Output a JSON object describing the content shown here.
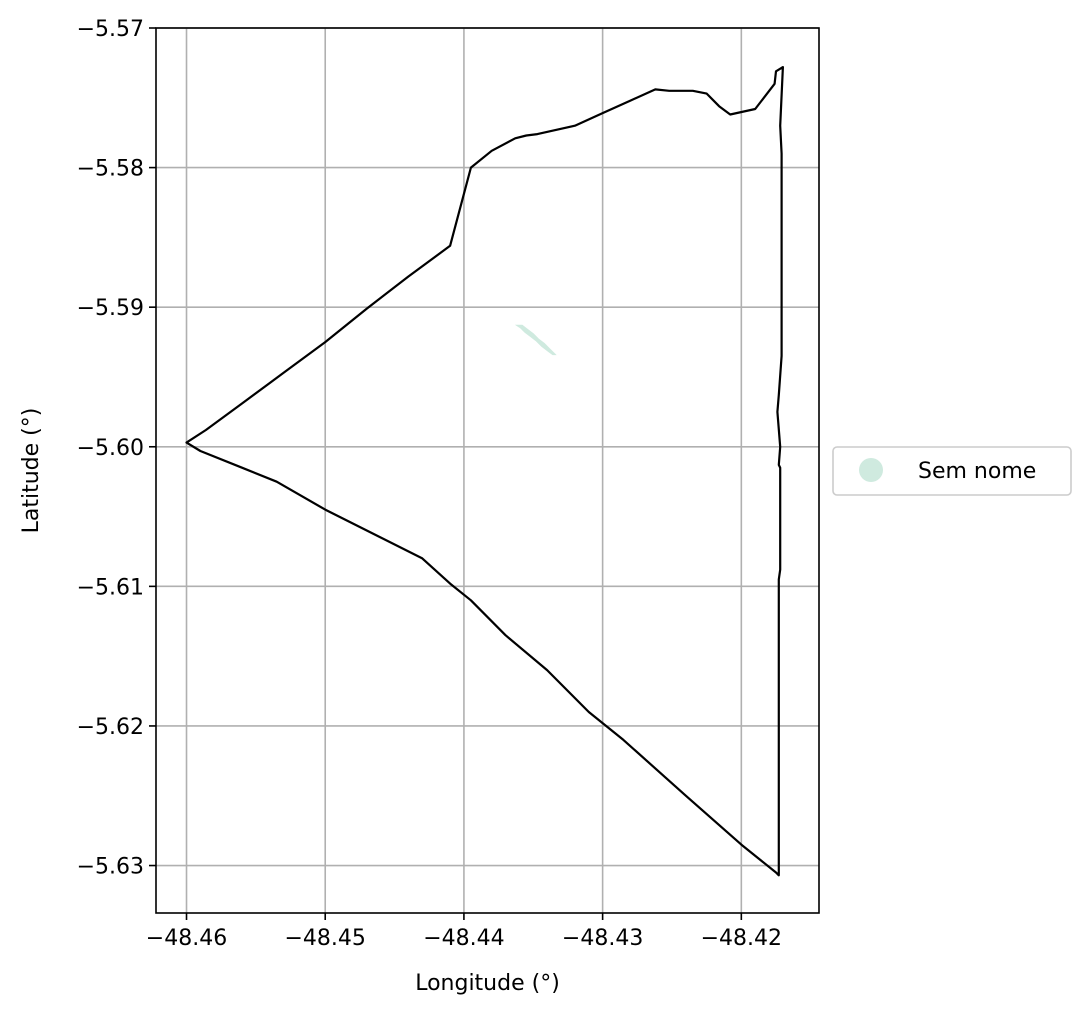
{
  "chart_data": {
    "type": "map",
    "xlabel": "Longitude (°)",
    "ylabel": "Latitude (°)",
    "xlim": [
      -48.4622,
      -48.4144
    ],
    "ylim": [
      -5.6334,
      -5.57
    ],
    "grid": true,
    "x_ticks": [
      {
        "value": -48.46,
        "label": "−48.46"
      },
      {
        "value": -48.45,
        "label": "−48.45"
      },
      {
        "value": -48.44,
        "label": "−48.44"
      },
      {
        "value": -48.43,
        "label": "−48.43"
      },
      {
        "value": -48.42,
        "label": "−48.42"
      }
    ],
    "y_ticks": [
      {
        "value": -5.57,
        "label": "−5.57"
      },
      {
        "value": -5.58,
        "label": "−5.58"
      },
      {
        "value": -5.59,
        "label": "−5.59"
      },
      {
        "value": -5.6,
        "label": "−5.60"
      },
      {
        "value": -5.61,
        "label": "−5.61"
      },
      {
        "value": -5.62,
        "label": "−5.62"
      },
      {
        "value": -5.63,
        "label": "−5.63"
      }
    ],
    "boundary": {
      "color": "#000000",
      "points": [
        [
          -48.46,
          -5.5997
        ],
        [
          -48.4586,
          -5.5988
        ],
        [
          -48.456,
          -5.5969
        ],
        [
          -48.453,
          -5.5947
        ],
        [
          -48.45,
          -5.5925
        ],
        [
          -48.447,
          -5.5901
        ],
        [
          -48.444,
          -5.5878
        ],
        [
          -48.441,
          -5.5856
        ],
        [
          -48.4395,
          -5.58
        ],
        [
          -48.438,
          -5.5788
        ],
        [
          -48.4363,
          -5.5779
        ],
        [
          -48.4355,
          -5.5777
        ],
        [
          -48.4347,
          -5.5776
        ],
        [
          -48.432,
          -5.577
        ],
        [
          -48.43,
          -5.5761
        ],
        [
          -48.428,
          -5.5752
        ],
        [
          -48.4262,
          -5.5744
        ],
        [
          -48.4252,
          -5.5745
        ],
        [
          -48.4235,
          -5.5745
        ],
        [
          -48.4225,
          -5.5747
        ],
        [
          -48.4216,
          -5.5756
        ],
        [
          -48.4208,
          -5.5762
        ],
        [
          -48.419,
          -5.5758
        ],
        [
          -48.4176,
          -5.574
        ],
        [
          -48.4175,
          -5.5731
        ],
        [
          -48.417,
          -5.5728
        ],
        [
          -48.4172,
          -5.577
        ],
        [
          -48.4171,
          -5.579
        ],
        [
          -48.4171,
          -5.59
        ],
        [
          -48.4171,
          -5.5935
        ],
        [
          -48.4173,
          -5.5963
        ],
        [
          -48.4174,
          -5.5975
        ],
        [
          -48.4172,
          -5.6
        ],
        [
          -48.4173,
          -5.6013
        ],
        [
          -48.4172,
          -5.6015
        ],
        [
          -48.4172,
          -5.6088
        ],
        [
          -48.4173,
          -5.6095
        ],
        [
          -48.4173,
          -5.62
        ],
        [
          -48.4173,
          -5.6307
        ],
        [
          -48.4175,
          -5.6305
        ],
        [
          -48.42,
          -5.6285
        ],
        [
          -48.424,
          -5.625
        ],
        [
          -48.4285,
          -5.621
        ],
        [
          -48.431,
          -5.619
        ],
        [
          -48.434,
          -5.616
        ],
        [
          -48.437,
          -5.6135
        ],
        [
          -48.4395,
          -5.611
        ],
        [
          -48.441,
          -5.6098
        ],
        [
          -48.443,
          -5.608
        ],
        [
          -48.446,
          -5.6065
        ],
        [
          -48.45,
          -5.6045
        ],
        [
          -48.4535,
          -5.6025
        ],
        [
          -48.456,
          -5.6015
        ],
        [
          -48.459,
          -5.6003
        ],
        [
          -48.46,
          -5.5997
        ]
      ]
    },
    "features": [
      {
        "name": "Sem nome",
        "color": "#cfeadf",
        "points": [
          [
            -48.4362,
            -5.5913
          ],
          [
            -48.4359,
            -5.5915
          ],
          [
            -48.4356,
            -5.5918
          ],
          [
            -48.4352,
            -5.5921
          ],
          [
            -48.4348,
            -5.5924
          ],
          [
            -48.4344,
            -5.5928
          ],
          [
            -48.434,
            -5.5931
          ],
          [
            -48.4336,
            -5.5934
          ],
          [
            -48.4334,
            -5.5934
          ],
          [
            -48.4338,
            -5.593
          ],
          [
            -48.4342,
            -5.5926
          ],
          [
            -48.4346,
            -5.5923
          ],
          [
            -48.435,
            -5.5919
          ],
          [
            -48.4354,
            -5.5916
          ],
          [
            -48.4358,
            -5.5913
          ]
        ]
      }
    ],
    "legend": {
      "placement": "center-right outside",
      "entries": [
        {
          "label": "Sem nome",
          "color": "#cfeadf"
        }
      ]
    }
  }
}
